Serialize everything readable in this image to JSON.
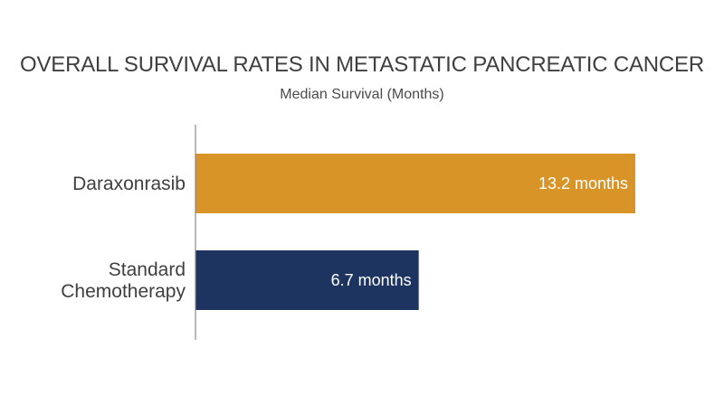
{
  "chart_data": {
    "type": "bar",
    "orientation": "horizontal",
    "title": "OVERALL SURVIVAL RATES IN METASTATIC PANCREATIC CANCER",
    "subtitle": "Median Survival (Months)",
    "categories": [
      [
        "Daraxonrasib"
      ],
      [
        "Standard",
        "Chemotherapy"
      ]
    ],
    "values": [
      13.2,
      6.7
    ],
    "value_labels": [
      "13.2 months",
      "6.7 months"
    ],
    "colors": [
      "#D89427",
      "#1D3461"
    ],
    "xlim": [
      0,
      13.2
    ],
    "grid": false,
    "legend": "none"
  },
  "colors": {
    "axis": "#8a8a8a",
    "text": "#3f3f3f"
  }
}
